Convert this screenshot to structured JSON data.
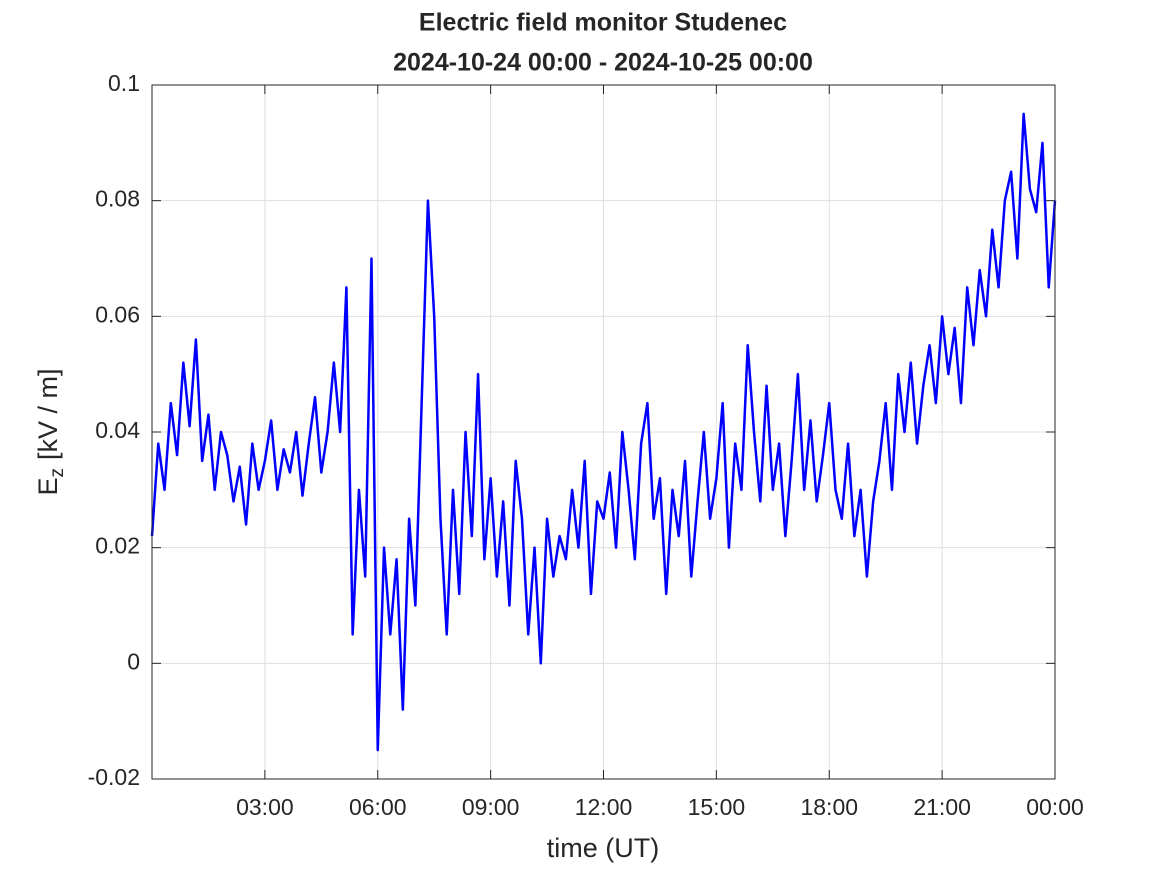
{
  "chart_data": {
    "type": "line",
    "title": "Electric field monitor Studenec",
    "subtitle": "2024-10-24 00:00 - 2024-10-25 00:00",
    "xlabel": "time (UT)",
    "ylabel": {
      "symbol": "E",
      "subscript": "z",
      "unit": "[kV / m]"
    },
    "xlim": [
      0,
      1440
    ],
    "xticks": [
      {
        "value": 180,
        "label": "03:00"
      },
      {
        "value": 360,
        "label": "06:00"
      },
      {
        "value": 540,
        "label": "09:00"
      },
      {
        "value": 720,
        "label": "12:00"
      },
      {
        "value": 900,
        "label": "15:00"
      },
      {
        "value": 1080,
        "label": "18:00"
      },
      {
        "value": 1260,
        "label": "21:00"
      },
      {
        "value": 1440,
        "label": "00:00"
      }
    ],
    "ylim": [
      -0.02,
      0.1
    ],
    "yticks": [
      -0.02,
      0,
      0.02,
      0.04,
      0.06,
      0.08,
      0.1
    ],
    "grid": true,
    "x": [
      0,
      10,
      20,
      30,
      40,
      50,
      60,
      70,
      80,
      90,
      100,
      110,
      120,
      130,
      140,
      150,
      160,
      170,
      180,
      190,
      200,
      210,
      220,
      230,
      240,
      250,
      260,
      270,
      280,
      290,
      300,
      310,
      320,
      330,
      340,
      350,
      360,
      370,
      380,
      390,
      400,
      410,
      420,
      430,
      440,
      450,
      460,
      470,
      480,
      490,
      500,
      510,
      520,
      530,
      540,
      550,
      560,
      570,
      580,
      590,
      600,
      610,
      620,
      630,
      640,
      650,
      660,
      670,
      680,
      690,
      700,
      710,
      720,
      730,
      740,
      750,
      760,
      770,
      780,
      790,
      800,
      810,
      820,
      830,
      840,
      850,
      860,
      870,
      880,
      890,
      900,
      910,
      920,
      930,
      940,
      950,
      960,
      970,
      980,
      990,
      1000,
      1010,
      1020,
      1030,
      1040,
      1050,
      1060,
      1070,
      1080,
      1090,
      1100,
      1110,
      1120,
      1130,
      1140,
      1150,
      1160,
      1170,
      1180,
      1190,
      1200,
      1210,
      1220,
      1230,
      1240,
      1250,
      1260,
      1270,
      1280,
      1290,
      1300,
      1310,
      1320,
      1330,
      1340,
      1350,
      1360,
      1370,
      1380,
      1390,
      1400,
      1410,
      1420,
      1430,
      1440
    ],
    "series": [
      {
        "name": "Ez",
        "color": "#0000ff",
        "values": [
          0.022,
          0.038,
          0.03,
          0.045,
          0.036,
          0.052,
          0.041,
          0.056,
          0.035,
          0.043,
          0.03,
          0.04,
          0.036,
          0.028,
          0.034,
          0.024,
          0.038,
          0.03,
          0.035,
          0.042,
          0.03,
          0.037,
          0.033,
          0.04,
          0.029,
          0.038,
          0.046,
          0.033,
          0.04,
          0.052,
          0.04,
          0.065,
          0.005,
          0.03,
          0.015,
          0.07,
          -0.015,
          0.02,
          0.005,
          0.018,
          -0.008,
          0.025,
          0.01,
          0.045,
          0.08,
          0.06,
          0.025,
          0.005,
          0.03,
          0.012,
          0.04,
          0.022,
          0.05,
          0.018,
          0.032,
          0.015,
          0.028,
          0.01,
          0.035,
          0.025,
          0.005,
          0.02,
          0,
          0.025,
          0.015,
          0.022,
          0.018,
          0.03,
          0.02,
          0.035,
          0.012,
          0.028,
          0.025,
          0.033,
          0.02,
          0.04,
          0.03,
          0.018,
          0.038,
          0.045,
          0.025,
          0.032,
          0.012,
          0.03,
          0.022,
          0.035,
          0.015,
          0.028,
          0.04,
          0.025,
          0.032,
          0.045,
          0.02,
          0.038,
          0.03,
          0.055,
          0.04,
          0.028,
          0.048,
          0.03,
          0.038,
          0.022,
          0.035,
          0.05,
          0.03,
          0.042,
          0.028,
          0.036,
          0.045,
          0.03,
          0.025,
          0.038,
          0.022,
          0.03,
          0.015,
          0.028,
          0.035,
          0.045,
          0.03,
          0.05,
          0.04,
          0.052,
          0.038,
          0.048,
          0.055,
          0.045,
          0.06,
          0.05,
          0.058,
          0.045,
          0.065,
          0.055,
          0.068,
          0.06,
          0.075,
          0.065,
          0.08,
          0.085,
          0.07,
          0.095,
          0.082,
          0.078,
          0.09,
          0.065,
          0.08
        ]
      }
    ]
  }
}
